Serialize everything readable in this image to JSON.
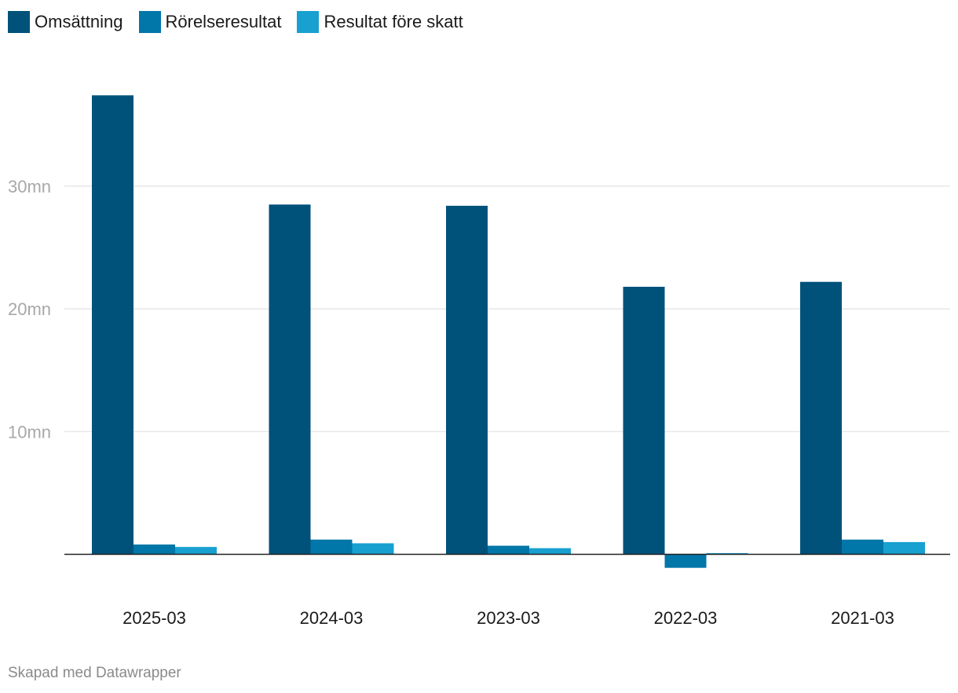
{
  "chart_data": {
    "type": "bar",
    "categories": [
      "2025-03",
      "2024-03",
      "2023-03",
      "2022-03",
      "2021-03"
    ],
    "series": [
      {
        "name": "Omsättning",
        "color": "#00527a",
        "values": [
          37.4,
          28.5,
          28.4,
          21.8,
          22.2
        ]
      },
      {
        "name": "Rörelseresultat",
        "color": "#0176a8",
        "values": [
          0.8,
          1.2,
          0.7,
          -1.1,
          1.2
        ]
      },
      {
        "name": "Resultat före skatt",
        "color": "#18a0d0",
        "values": [
          0.6,
          0.9,
          0.5,
          0.1,
          1.0
        ]
      }
    ],
    "y_ticks": [
      {
        "value": 10,
        "label": "10mn"
      },
      {
        "value": 20,
        "label": "20mn"
      },
      {
        "value": 30,
        "label": "30mn"
      }
    ],
    "ylim": [
      -1.5,
      40
    ],
    "grid": true,
    "legend_position": "top-left"
  },
  "footer": {
    "credit": "Skapad med Datawrapper"
  }
}
